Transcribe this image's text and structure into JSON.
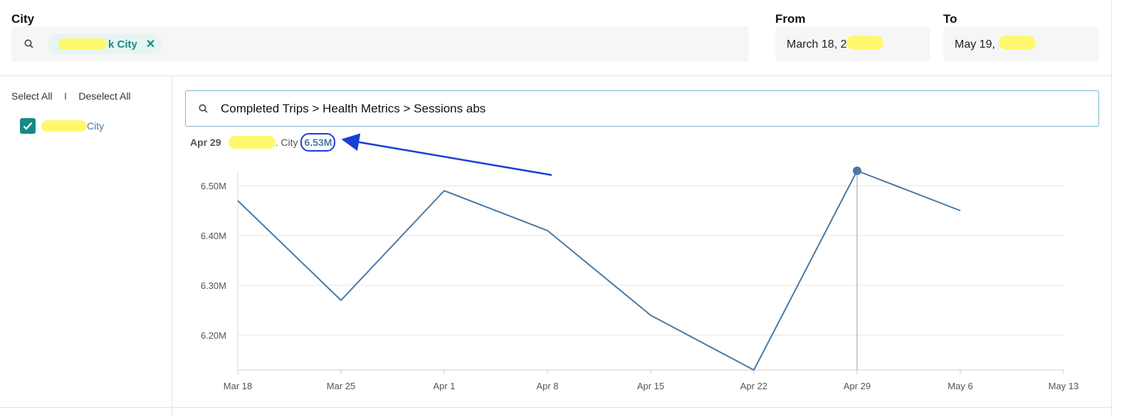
{
  "city_filter": {
    "label": "City",
    "chip_label": "k City"
  },
  "date_range": {
    "from_label": "From",
    "from_value": "March 18, 2",
    "to_label": "To",
    "to_value": "May 19,"
  },
  "sidebar": {
    "select_all": "Select All",
    "separator": "I",
    "deselect_all": "Deselect All",
    "items": [
      {
        "label": "City",
        "checked": true
      }
    ]
  },
  "metric_search": {
    "value": "Completed Trips > Health Metrics > Sessions abs"
  },
  "tooltip": {
    "date": "Apr 29",
    "city": ". City",
    "value": "6.53M"
  },
  "colors": {
    "accent": "#168a85",
    "line": "#4a79a5",
    "annotation": "#1a3fd6",
    "redaction": "#fff86e"
  },
  "chart_data": {
    "type": "line",
    "x": [
      "Mar 18",
      "Mar 25",
      "Apr 1",
      "Apr 8",
      "Apr 15",
      "Apr 22",
      "Apr 29",
      "May 6"
    ],
    "x_ticks": [
      "Mar 18",
      "Mar 25",
      "Apr 1",
      "Apr 8",
      "Apr 15",
      "Apr 22",
      "Apr 29",
      "May 6",
      "May 13"
    ],
    "series": [
      {
        "values": [
          6.47,
          6.27,
          6.49,
          6.41,
          6.24,
          6.13,
          6.53,
          6.45
        ]
      }
    ],
    "y_ticks": [
      "6.20M",
      "6.30M",
      "6.40M",
      "6.50M"
    ],
    "y_tick_values": [
      6.2,
      6.3,
      6.4,
      6.5
    ],
    "ylim": [
      6.13,
      6.53
    ],
    "grid": true,
    "highlight_index": 6
  }
}
